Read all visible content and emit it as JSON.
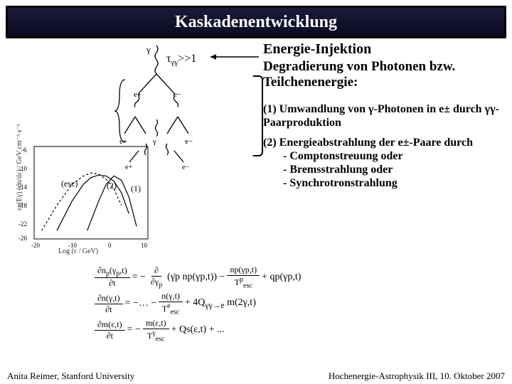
{
  "title": "Kaskadenentwicklung",
  "tau_label": "τ_γγ >>1",
  "right": {
    "h1": "Energie-Injektion",
    "h2": "Degradierung von Photonen bzw. Teilchenenergie:",
    "p1": "(1) Umwandlung von γ-Photonen in e± durch γγ-Paarproduktion",
    "p2a": "(2) Energieabstrahlung der e±-Paare durch",
    "p2b1": "- Comptonstreuung oder",
    "p2b2": "- Bremsstrahlung oder",
    "p2b3": "- Synchrotronstrahlung"
  },
  "labels": {
    "esc": "(esc)",
    "l2": "(2)",
    "l1": "(1)"
  },
  "eq": {
    "dt": "∂t",
    "r1l": "= −",
    "r1n": "∂",
    "r1d": "∂γp",
    "r1m": "(γ̇p np(γp,t)) −",
    "r1fn": "np(γp,t)",
    "r1fd": "Tesc^p",
    "r1r": "+ qp(γp,t)",
    "r2l": "= −",
    "r2fn": "n(γ,t)",
    "r2fd": "Tesc^e",
    "r2r": "+ 4Qγγ→e m(2γ,t)",
    "r3l": "= −",
    "r3fn": "m(ε,t)",
    "r3fd": "Tesc^γ",
    "r3r": "+ Qs(ε,t) + ..."
  },
  "footer": {
    "left": "Anita Reimer, Stanford University",
    "right": "Hochenergie-Astrophysik III, 10. Oktober 2007"
  },
  "chart": {
    "bg": "#ffffff",
    "axis": "#000000",
    "curve": "#000000",
    "xlim": [
      -20,
      10
    ],
    "ylim": [
      -26,
      -4
    ],
    "xticks": [
      -20,
      -10,
      0,
      10
    ],
    "yticks": [
      -6,
      -10,
      -14,
      -18,
      -22,
      -26
    ],
    "xlabel": "Log (ε / GeV)",
    "ylabel": "εq(Eγ) (dn/dε) / GeV cm⁻³ s⁻¹",
    "series": [
      {
        "type": "dashed",
        "points": [
          [
            -18,
            -24
          ],
          [
            -14,
            -18
          ],
          [
            -10,
            -13
          ],
          [
            -7,
            -11
          ],
          [
            -5,
            -10.3
          ],
          [
            -3,
            -10.6
          ],
          [
            -1,
            -11.8
          ],
          [
            1,
            -14
          ],
          [
            3,
            -18
          ]
        ]
      },
      {
        "type": "solid",
        "points": [
          [
            -14,
            -24
          ],
          [
            -10,
            -17
          ],
          [
            -7,
            -13
          ],
          [
            -5,
            -11.4
          ],
          [
            -3,
            -10.8
          ],
          [
            -1,
            -11
          ],
          [
            1,
            -12.2
          ],
          [
            3,
            -15
          ],
          [
            5,
            -20
          ]
        ]
      },
      {
        "type": "solid",
        "points": [
          [
            -6,
            -24
          ],
          [
            -3,
            -17
          ],
          [
            -1,
            -13
          ],
          [
            1,
            -11
          ],
          [
            3,
            -12
          ],
          [
            5,
            -16
          ],
          [
            7,
            -23
          ]
        ]
      }
    ]
  },
  "feyn": {
    "stroke": "#000",
    "ep": "e+",
    "em": "e−",
    "g": "γ"
  }
}
